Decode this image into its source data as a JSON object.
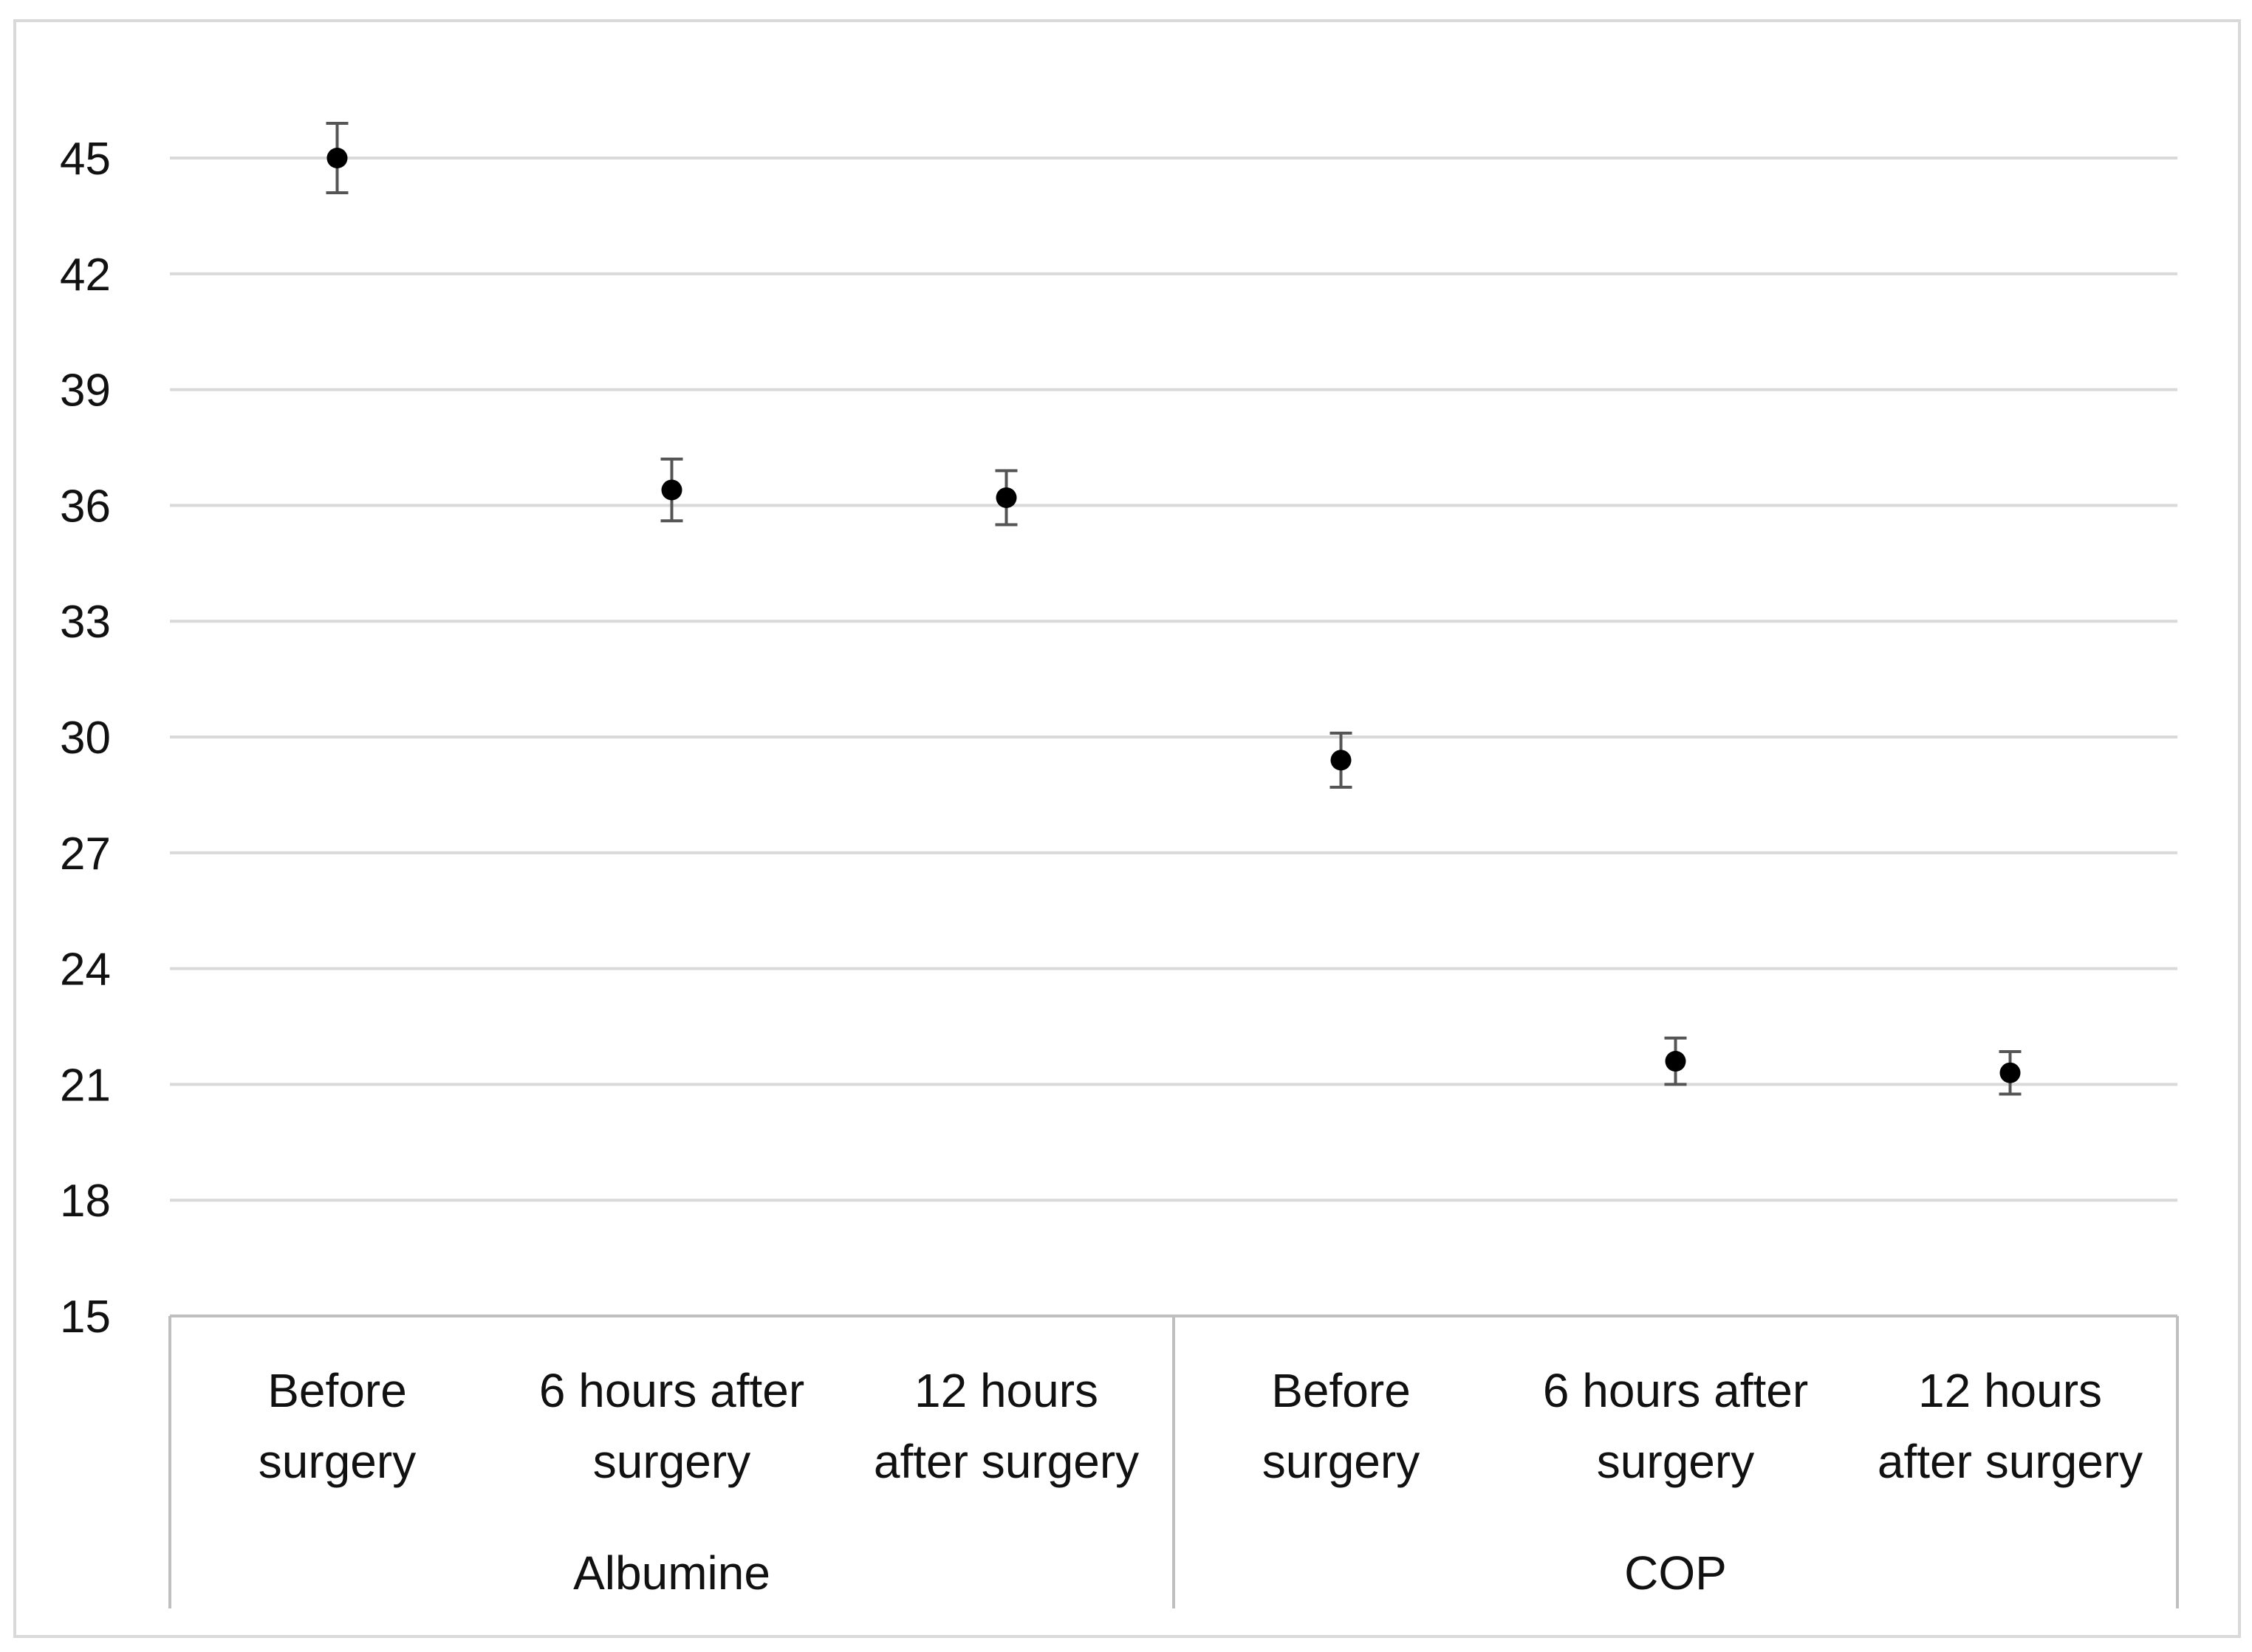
{
  "chart_data": {
    "type": "scatter",
    "title": "",
    "xlabel": "",
    "ylabel": "",
    "ylim": [
      15,
      45
    ],
    "yticks": [
      15,
      18,
      21,
      24,
      27,
      30,
      33,
      36,
      39,
      42,
      45
    ],
    "grid": true,
    "error_bars": true,
    "colors": {
      "marker": "#000000",
      "error_bar": "#555555",
      "grid": "#d9d9d9",
      "axis": "#bfbfbf",
      "frame": "#d9d9d9"
    },
    "groups": [
      {
        "label": "Albumine",
        "categories": [
          {
            "lines": [
              "Before",
              "surgery"
            ],
            "value": 45.0,
            "error": 0.9
          },
          {
            "lines": [
              "6 hours after",
              "surgery"
            ],
            "value": 36.4,
            "error": 0.8
          },
          {
            "lines": [
              "12 hours",
              "after surgery"
            ],
            "value": 36.2,
            "error": 0.7
          }
        ]
      },
      {
        "label": "COP",
        "categories": [
          {
            "lines": [
              "Before",
              "surgery"
            ],
            "value": 29.4,
            "error": 0.7
          },
          {
            "lines": [
              "6 hours after",
              "surgery"
            ],
            "value": 21.6,
            "error": 0.6
          },
          {
            "lines": [
              "12 hours",
              "after surgery"
            ],
            "value": 21.3,
            "error": 0.55
          }
        ]
      }
    ]
  }
}
